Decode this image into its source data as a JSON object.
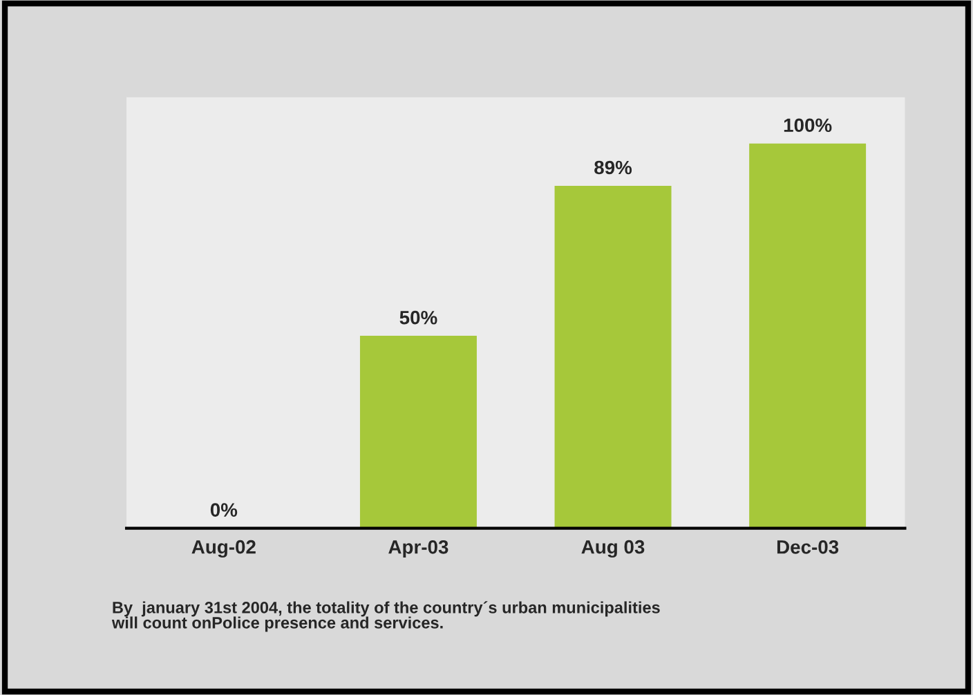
{
  "chart_data": {
    "type": "bar",
    "categories": [
      "Aug-02",
      "Apr-03",
      "Aug 03",
      "Dec-03"
    ],
    "values": [
      0,
      50,
      89,
      100
    ],
    "value_labels": [
      "0%",
      "50%",
      "89%",
      "100%"
    ],
    "color": "#a6c83a",
    "grid": false,
    "annotations": [
      "By  january 31st 2004, the totality of the country´s urban municipalities\nwill count onPolice presence and services."
    ]
  }
}
